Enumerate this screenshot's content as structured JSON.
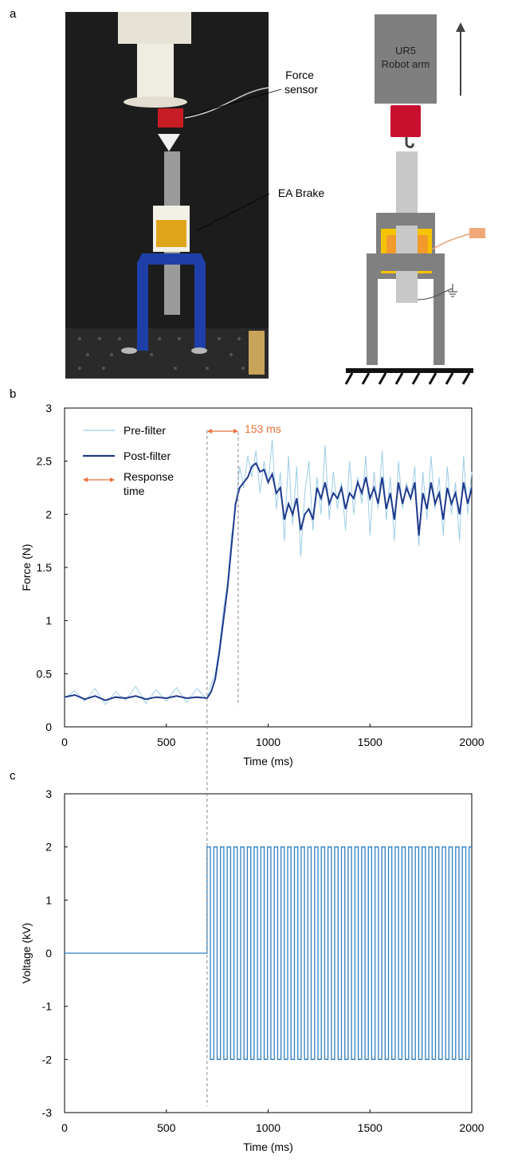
{
  "panel_labels": {
    "a": "a",
    "b": "b",
    "c": "c"
  },
  "photo": {
    "force_sensor_label": "Force\nsensor",
    "ea_brake_label": "EA Brake"
  },
  "schematic": {
    "robot_label_line1": "UR5",
    "robot_label_line2": "Robot arm"
  },
  "colors": {
    "pre_filter": "#9ecde6",
    "post_filter": "#1f3a8c",
    "response": "#e8703a",
    "voltage": "#2f7fc1",
    "robot": "#7f7f7f",
    "sensor": "#c8102e",
    "brake_yellow": "#f5c400",
    "brake_orange": "#f29b2c",
    "frame_gray": "#808080"
  },
  "chart_data": [
    {
      "type": "line",
      "panel": "b",
      "xlabel": "Time (ms)",
      "ylabel": "Force (N)",
      "xlim": [
        0,
        2000
      ],
      "ylim": [
        0,
        3
      ],
      "xticks": [
        "0",
        "500",
        "1000",
        "1500",
        "2000"
      ],
      "yticks": [
        "0",
        "0.5",
        "1",
        "1.5",
        "2",
        "2.5",
        "3"
      ],
      "grid": false,
      "legend": [
        {
          "name": "Pre-filter",
          "style": "thin-light-line"
        },
        {
          "name": "Post-filter",
          "style": "thick-dark-line"
        },
        {
          "name": "Response\ntime",
          "style": "double-arrow"
        }
      ],
      "annotation": {
        "text": "153 ms",
        "x_start": 700,
        "x_end": 853
      },
      "series": [
        {
          "name": "Pre-filter",
          "x": [
            0,
            50,
            100,
            150,
            200,
            250,
            300,
            350,
            400,
            450,
            500,
            550,
            600,
            650,
            700,
            720,
            740,
            760,
            780,
            800,
            820,
            840,
            860,
            880,
            900,
            920,
            940,
            960,
            980,
            1000,
            1020,
            1040,
            1060,
            1080,
            1100,
            1120,
            1140,
            1160,
            1180,
            1200,
            1220,
            1240,
            1260,
            1280,
            1300,
            1320,
            1340,
            1360,
            1380,
            1400,
            1420,
            1440,
            1460,
            1480,
            1500,
            1520,
            1540,
            1560,
            1580,
            1600,
            1620,
            1640,
            1660,
            1680,
            1700,
            1720,
            1740,
            1760,
            1780,
            1800,
            1820,
            1840,
            1860,
            1880,
            1900,
            1920,
            1940,
            1960,
            1980,
            2000
          ],
          "y": [
            0.27,
            0.34,
            0.24,
            0.36,
            0.21,
            0.33,
            0.25,
            0.38,
            0.22,
            0.35,
            0.24,
            0.37,
            0.23,
            0.36,
            0.26,
            0.4,
            0.5,
            0.75,
            1.1,
            1.35,
            1.8,
            2.05,
            2.45,
            2.25,
            2.55,
            2.35,
            2.6,
            2.2,
            2.5,
            2.3,
            2.7,
            2.05,
            2.4,
            1.75,
            2.55,
            1.9,
            2.45,
            1.6,
            2.2,
            2.5,
            1.85,
            2.35,
            2.0,
            2.65,
            1.95,
            2.4,
            2.05,
            2.3,
            1.85,
            2.5,
            2.0,
            2.35,
            2.1,
            2.55,
            1.8,
            2.4,
            2.05,
            2.6,
            1.95,
            2.35,
            1.75,
            2.5,
            2.05,
            2.3,
            2.15,
            2.45,
            1.7,
            2.4,
            1.95,
            2.55,
            2.05,
            2.35,
            1.8,
            2.45,
            2.0,
            2.3,
            1.75,
            2.55,
            2.0,
            2.4
          ]
        },
        {
          "name": "Post-filter",
          "x": [
            0,
            50,
            100,
            150,
            200,
            250,
            300,
            350,
            400,
            450,
            500,
            550,
            600,
            650,
            700,
            720,
            740,
            760,
            780,
            800,
            820,
            840,
            860,
            880,
            900,
            920,
            940,
            960,
            980,
            1000,
            1020,
            1040,
            1060,
            1080,
            1100,
            1120,
            1140,
            1160,
            1180,
            1200,
            1220,
            1240,
            1260,
            1280,
            1300,
            1320,
            1340,
            1360,
            1380,
            1400,
            1420,
            1440,
            1460,
            1480,
            1500,
            1520,
            1540,
            1560,
            1580,
            1600,
            1620,
            1640,
            1660,
            1680,
            1700,
            1720,
            1740,
            1760,
            1780,
            1800,
            1820,
            1840,
            1860,
            1880,
            1900,
            1920,
            1940,
            1960,
            1980,
            2000
          ],
          "y": [
            0.28,
            0.3,
            0.26,
            0.29,
            0.25,
            0.28,
            0.27,
            0.29,
            0.26,
            0.28,
            0.27,
            0.29,
            0.27,
            0.28,
            0.27,
            0.33,
            0.45,
            0.7,
            1.0,
            1.3,
            1.7,
            2.1,
            2.25,
            2.3,
            2.35,
            2.45,
            2.48,
            2.4,
            2.42,
            2.3,
            2.38,
            2.2,
            2.25,
            1.95,
            2.1,
            2.0,
            2.15,
            1.85,
            2.0,
            2.05,
            1.95,
            2.25,
            2.15,
            2.3,
            2.1,
            2.2,
            2.15,
            2.25,
            2.05,
            2.2,
            2.15,
            2.3,
            2.2,
            2.35,
            2.15,
            2.25,
            2.1,
            2.35,
            2.05,
            2.2,
            1.95,
            2.3,
            2.1,
            2.25,
            2.15,
            2.3,
            1.8,
            2.2,
            2.05,
            2.3,
            2.1,
            2.2,
            1.95,
            2.25,
            2.1,
            2.2,
            2.0,
            2.3,
            2.1,
            2.25
          ]
        }
      ]
    },
    {
      "type": "line",
      "panel": "c",
      "xlabel": "Time (ms)",
      "ylabel": "Voltage (kV)",
      "xlim": [
        0,
        2000
      ],
      "ylim": [
        -3,
        3
      ],
      "xticks": [
        "0",
        "500",
        "1000",
        "1500",
        "2000"
      ],
      "yticks": [
        "-3",
        "-2",
        "-1",
        "0",
        "1",
        "2",
        "3"
      ],
      "grid": false,
      "waveform": {
        "baseline": 0,
        "start_ms": 700,
        "end_ms": 2000,
        "high": 2,
        "low": -2,
        "period_ms": 33
      }
    }
  ]
}
